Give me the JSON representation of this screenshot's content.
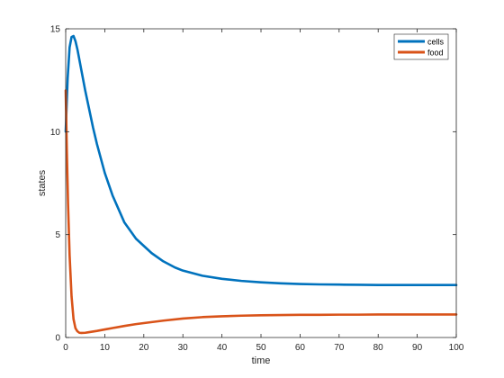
{
  "chart_data": {
    "type": "line",
    "xlabel": "time",
    "ylabel": "states",
    "xlim": [
      0,
      100
    ],
    "ylim": [
      0,
      15
    ],
    "xticks": [
      0,
      10,
      20,
      30,
      40,
      50,
      60,
      70,
      80,
      90,
      100
    ],
    "yticks": [
      0,
      5,
      10,
      15
    ],
    "grid": false,
    "legend_position": "top-right",
    "series": [
      {
        "name": "cells",
        "color": "#0072BD",
        "x": [
          0,
          0.5,
          1,
          1.5,
          2,
          2.5,
          3,
          4,
          5,
          6,
          7,
          8,
          10,
          12,
          15,
          18,
          20,
          22,
          25,
          28,
          30,
          35,
          40,
          45,
          50,
          55,
          60,
          65,
          70,
          75,
          80,
          85,
          90,
          95,
          100
        ],
        "y": [
          10.0,
          12.6,
          14.1,
          14.6,
          14.65,
          14.4,
          14.0,
          13.0,
          12.0,
          11.1,
          10.2,
          9.4,
          8.0,
          6.9,
          5.6,
          4.8,
          4.45,
          4.1,
          3.7,
          3.4,
          3.25,
          3.0,
          2.85,
          2.75,
          2.68,
          2.63,
          2.6,
          2.58,
          2.57,
          2.56,
          2.55,
          2.55,
          2.55,
          2.55,
          2.55
        ]
      },
      {
        "name": "food",
        "color": "#D95319",
        "x": [
          0,
          0.3,
          0.6,
          1,
          1.5,
          2,
          2.5,
          3,
          3.5,
          4,
          5,
          6,
          8,
          10,
          12,
          15,
          18,
          20,
          25,
          30,
          35,
          40,
          45,
          50,
          55,
          60,
          65,
          70,
          75,
          80,
          85,
          90,
          95,
          100
        ],
        "y": [
          12.0,
          9.0,
          6.5,
          4.0,
          2.0,
          0.9,
          0.45,
          0.3,
          0.23,
          0.22,
          0.23,
          0.26,
          0.32,
          0.39,
          0.46,
          0.56,
          0.65,
          0.7,
          0.82,
          0.92,
          0.99,
          1.03,
          1.06,
          1.08,
          1.09,
          1.1,
          1.1,
          1.11,
          1.11,
          1.12,
          1.12,
          1.12,
          1.12,
          1.12
        ]
      }
    ]
  }
}
